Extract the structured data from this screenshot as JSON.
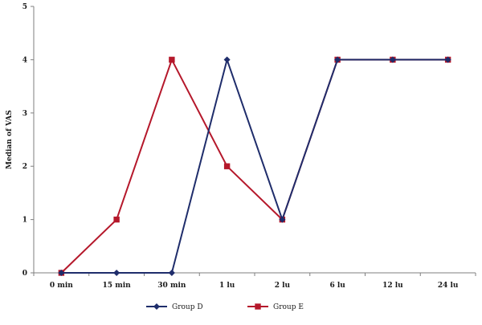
{
  "chart_data": {
    "type": "line",
    "title": "",
    "xlabel": "",
    "ylabel": "Median of VAS",
    "categories": [
      "0 min",
      "15 min",
      "30 min",
      "1 lu",
      "2 lu",
      "6 lu",
      "12 lu",
      "24 lu"
    ],
    "ylim": [
      0,
      5
    ],
    "yticks": [
      "0",
      "1",
      "2",
      "3",
      "4",
      "5"
    ],
    "grid": false,
    "legend_position": "bottom",
    "series": [
      {
        "name": "Group D",
        "values": [
          0,
          0,
          0,
          4,
          1,
          4,
          4,
          4
        ],
        "color": "#1f2d6b",
        "marker": "diamond"
      },
      {
        "name": "Group E",
        "values": [
          0,
          1,
          4,
          2,
          1,
          4,
          4,
          4
        ],
        "color": "#b5182b",
        "marker": "square"
      }
    ]
  }
}
